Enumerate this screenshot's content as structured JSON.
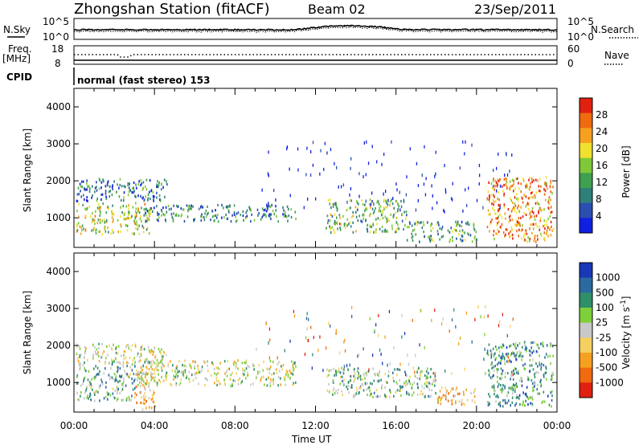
{
  "header": {
    "station": "Zhongshan Station (fitACF)",
    "beam": "Beam 02",
    "date": "23/Sep/2011"
  },
  "top_panels": {
    "nsky_label": "N.Sky",
    "nsky_ticks": [
      "10^5",
      "10^0"
    ],
    "nsearch_label": "N.Search",
    "nsearch_ticks": [
      "10^5",
      "10^0"
    ],
    "freq_label": "Freq.",
    "freq_unit": "[MHz]",
    "freq_ticks": [
      "18",
      "8"
    ],
    "nave_label": "Nave",
    "nave_ticks": [
      "60",
      "0"
    ],
    "cpid_label": "CPID",
    "cpid_text": "normal (fast stereo) 153"
  },
  "chart_data": [
    {
      "type": "heatmap",
      "title": "",
      "xlabel": "",
      "ylabel": "Slant Range [km]",
      "x_range_hours": [
        0,
        24
      ],
      "ylim": [
        200,
        4500
      ],
      "y_ticks": [
        1000,
        2000,
        3000,
        4000
      ],
      "colorbar": {
        "label": "Power [dB]",
        "ticks": [
          "28",
          "24",
          "20",
          "16",
          "12",
          "8",
          "4"
        ],
        "range": [
          0,
          30
        ],
        "colors": [
          "#1020e0",
          "#2a4fb0",
          "#2f7f7a",
          "#3fa050",
          "#7fc838",
          "#f0e030",
          "#f5a020",
          "#f06a10",
          "#e02010"
        ]
      },
      "clusters": [
        {
          "t": [
            0.1,
            3.8
          ],
          "r": [
            550,
            1400
          ],
          "level": 0.55
        },
        {
          "t": [
            0.1,
            4.6
          ],
          "r": [
            1450,
            2050
          ],
          "level": 0.25
        },
        {
          "t": [
            3.5,
            11.0
          ],
          "r": [
            900,
            1350
          ],
          "level": 0.3
        },
        {
          "t": [
            12.5,
            16.5
          ],
          "r": [
            600,
            1500
          ],
          "level": 0.45
        },
        {
          "t": [
            16.5,
            20.0
          ],
          "r": [
            350,
            900
          ],
          "level": 0.35
        },
        {
          "t": [
            20.5,
            23.8
          ],
          "r": [
            350,
            2100
          ],
          "level": 0.75
        }
      ]
    },
    {
      "type": "heatmap",
      "title": "",
      "xlabel": "Time UT",
      "ylabel": "Slant Range [km]",
      "x_range_hours": [
        0,
        24
      ],
      "x_ticks": [
        "00:00",
        "04:00",
        "08:00",
        "12:00",
        "16:00",
        "20:00",
        "00:00"
      ],
      "ylim": [
        200,
        4500
      ],
      "y_ticks": [
        1000,
        2000,
        3000,
        4000
      ],
      "colorbar": {
        "label": "Velocity [m s^-1]",
        "ticks": [
          "1000",
          "500",
          "100",
          "25",
          "-25",
          "-100",
          "-500",
          "-1000"
        ],
        "range": [
          -1000,
          1000
        ],
        "colors": [
          "#1838b8",
          "#2a6aa0",
          "#2f8f68",
          "#7fcf3a",
          "#c8c8c8",
          "#f5d060",
          "#f5a020",
          "#f06a10",
          "#e02010"
        ]
      },
      "clusters": [
        {
          "t": [
            0.1,
            3.0
          ],
          "r": [
            500,
            1500
          ],
          "vel": 300
        },
        {
          "t": [
            0.1,
            4.6
          ],
          "r": [
            1500,
            2050
          ],
          "vel": 0
        },
        {
          "t": [
            3.0,
            11.0
          ],
          "r": [
            900,
            1600
          ],
          "vel": 0
        },
        {
          "t": [
            3.0,
            4.0
          ],
          "r": [
            250,
            1300
          ],
          "vel": -300
        },
        {
          "t": [
            12.5,
            18.0
          ],
          "r": [
            600,
            1400
          ],
          "vel": 200
        },
        {
          "t": [
            18.0,
            20.0
          ],
          "r": [
            400,
            900
          ],
          "vel": -300
        },
        {
          "t": [
            20.5,
            23.8
          ],
          "r": [
            350,
            2100
          ],
          "vel": 400
        }
      ]
    }
  ]
}
